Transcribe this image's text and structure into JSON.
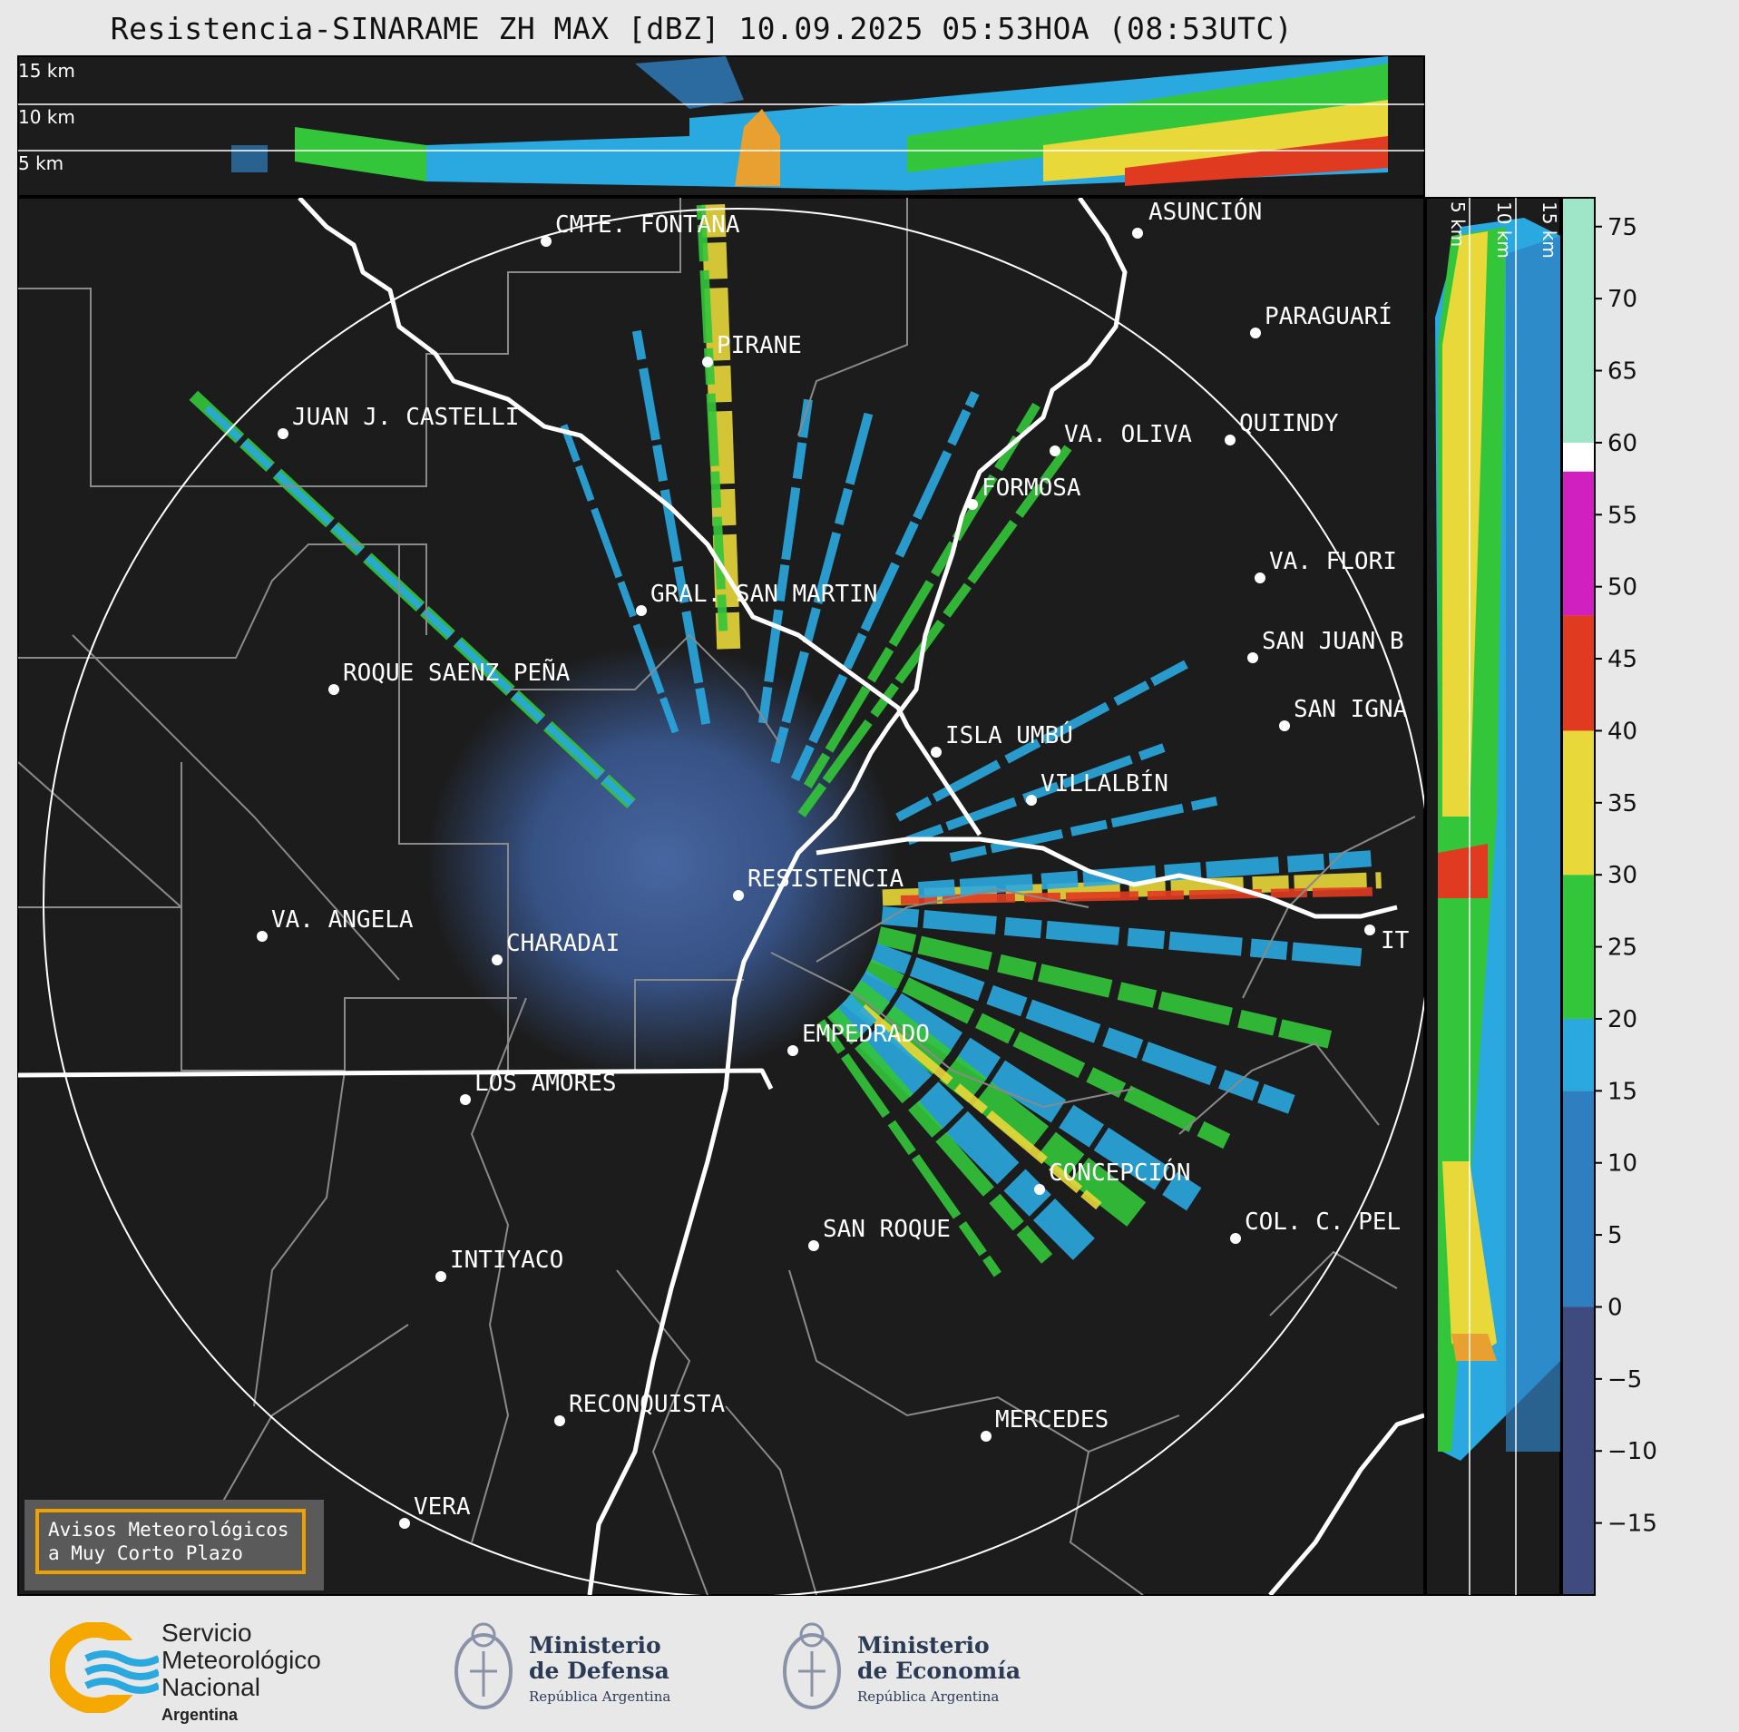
{
  "title": "Resistencia-SINARAME ZH MAX [dBZ] 10.09.2025 05:53HOA (08:53UTC)",
  "top_panel": {
    "height_labels": [
      "15 km",
      "10 km",
      "5 km"
    ]
  },
  "side_panel": {
    "height_labels": [
      "5 km",
      "10 km",
      "15 km"
    ]
  },
  "cities": [
    {
      "name": "CMTE. FONTANA"
    },
    {
      "name": "ASUNCIÓN"
    },
    {
      "name": "PARAGUARÍ"
    },
    {
      "name": "PIRANE"
    },
    {
      "name": "JUAN J. CASTELLI"
    },
    {
      "name": "VA. OLIVA"
    },
    {
      "name": "QUIINDY"
    },
    {
      "name": "FORMOSA"
    },
    {
      "name": "VA. FLORI"
    },
    {
      "name": "GRAL. SAN MARTIN"
    },
    {
      "name": "SAN JUAN B"
    },
    {
      "name": "ROQUE SAENZ PEÑA"
    },
    {
      "name": "SAN IGNA"
    },
    {
      "name": "ISLA UMBÚ"
    },
    {
      "name": "VILLALBÍN"
    },
    {
      "name": "RESISTENCIA"
    },
    {
      "name": "VA. ANGELA"
    },
    {
      "name": "CHARADAI"
    },
    {
      "name": "IT"
    },
    {
      "name": "EMPEDRADO"
    },
    {
      "name": "LOS AMORES"
    },
    {
      "name": "CONCEPCIÓN"
    },
    {
      "name": "COL. C. PEL"
    },
    {
      "name": "SAN ROQUE"
    },
    {
      "name": "INTIYACO"
    },
    {
      "name": "RECONQUISTA"
    },
    {
      "name": "MERCEDES"
    },
    {
      "name": "VERA"
    }
  ],
  "colorbar": {
    "unit": "dBZ",
    "ticks": [
      "75",
      "70",
      "65",
      "60",
      "55",
      "50",
      "45",
      "40",
      "35",
      "30",
      "25",
      "20",
      "15",
      "10",
      "5",
      "0",
      "−5",
      "−10",
      "−15"
    ],
    "range": [
      -20,
      77
    ],
    "colors": {
      "below_0": "#3f4a7e",
      "0_15": "#2f7fc0",
      "15_20": "#2aa8e0",
      "20_30": "#34c63a",
      "30_40": "#e8d83a",
      "40_48": "#e03a20",
      "48_58": "#d020c0",
      "58_60": "#ffffff",
      "60_77": "#9fe6c8"
    }
  },
  "warning": {
    "line1": "Avisos Meteorológicos",
    "line2": "a Muy Corto Plazo"
  },
  "logos": {
    "smn": {
      "line1": "Servicio",
      "line2": "Meteorológico",
      "line3": "Nacional",
      "line4": "Argentina",
      "color": "#f5a800"
    },
    "defensa": {
      "line1": "Ministerio",
      "line2": "de Defensa",
      "line3": "República Argentina"
    },
    "economia": {
      "line1": "Ministerio",
      "line2": "de Economía",
      "line3": "República Argentina"
    }
  }
}
